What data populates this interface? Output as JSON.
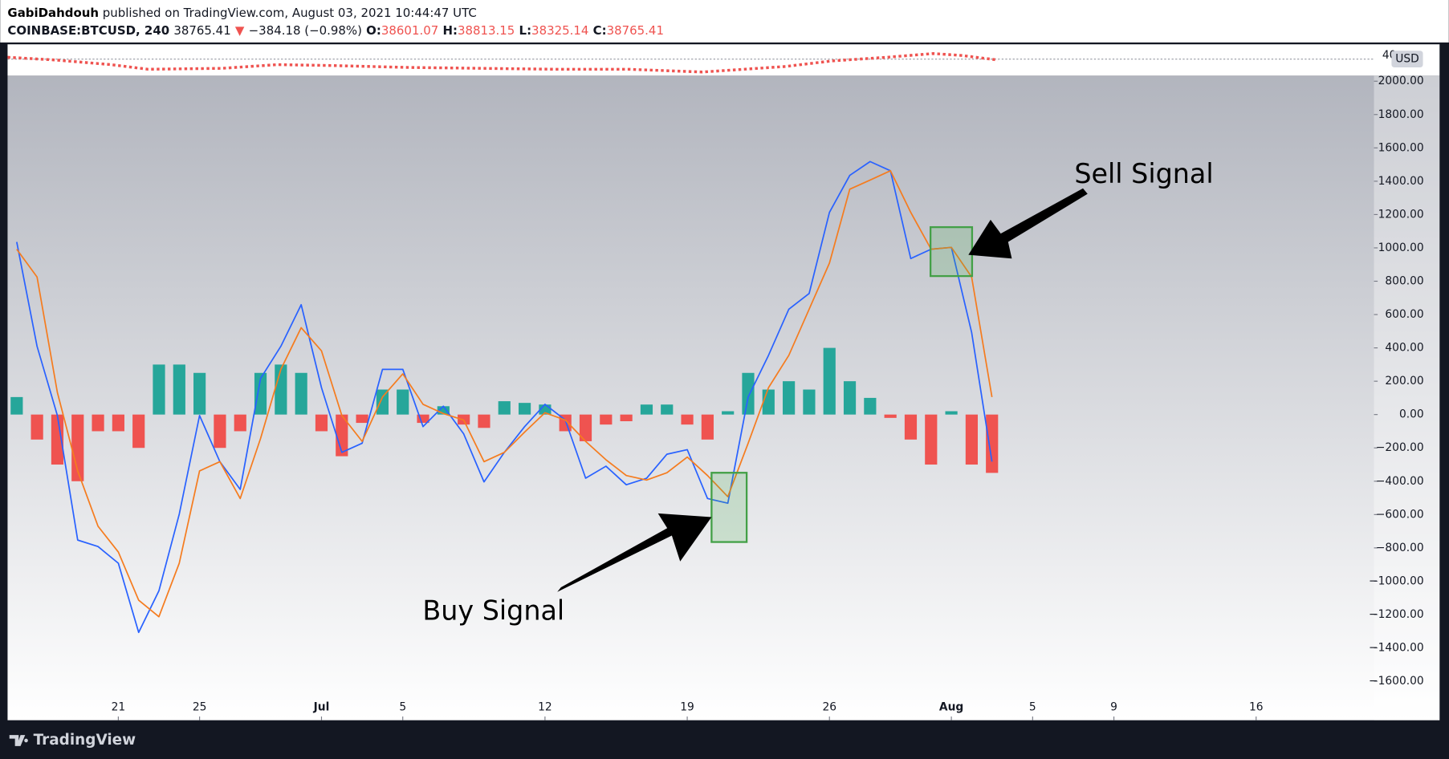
{
  "header": {
    "author": "GabiDahdouh",
    "published": "published on TradingView.com, August 03, 2021 10:44:47 UTC",
    "symbol": "COINBASE:BTCUSD, 240",
    "price": "38765.41",
    "direction": "▼",
    "change": "−384.18 (−0.98%)",
    "ohlc": [
      {
        "label": "O:",
        "value": "38601.07"
      },
      {
        "label": "H:",
        "value": "38813.15"
      },
      {
        "label": "L:",
        "value": "38325.14"
      },
      {
        "label": "C:",
        "value": "38765.41"
      }
    ]
  },
  "overview": {
    "axis_label": "40",
    "currency": "USD"
  },
  "chart_data": {
    "type": "line",
    "x": [
      16,
      17,
      18,
      19,
      20,
      21,
      22,
      23,
      24,
      25,
      26,
      27,
      28,
      29,
      30,
      31,
      32,
      33,
      34,
      35,
      36,
      37,
      38,
      39,
      40,
      41,
      42,
      43,
      44,
      45,
      46,
      47,
      48,
      49,
      50,
      51,
      52,
      53,
      54,
      55,
      56,
      57,
      58,
      59,
      60,
      61,
      62,
      63,
      64
    ],
    "series": [
      {
        "type": "bar",
        "color": "#26a69a",
        "negative_color": "#ef5350",
        "values": [
          105,
          -150,
          -300,
          -400,
          -100,
          -100,
          -200,
          300,
          300,
          250,
          -200,
          -100,
          250,
          300,
          250,
          -100,
          -250,
          -50,
          150,
          150,
          -50,
          50,
          -60,
          -80,
          80,
          70,
          60,
          -100,
          -160,
          -60,
          -40,
          60,
          60,
          -60,
          -150,
          20,
          250,
          150,
          200,
          150,
          400,
          200,
          100,
          -20,
          -150,
          -300,
          20,
          -300,
          -350
        ]
      },
      {
        "type": "line",
        "color": "#2962ff",
        "values": [
          1036,
          410,
          -6,
          -753,
          -792,
          -892,
          -1307,
          -1058,
          -598,
          -6,
          -283,
          -449,
          216,
          410,
          659,
          161,
          -227,
          -172,
          271,
          271,
          -72,
          50,
          -116,
          -404,
          -227,
          -72,
          61,
          -33,
          -382,
          -310,
          -421,
          -382,
          -238,
          -211,
          -504,
          -532,
          105,
          355,
          632,
          726,
          1213,
          1435,
          1518,
          1463,
          936,
          992,
          1003,
          493,
          -283
        ]
      },
      {
        "type": "line",
        "color": "#f57c1f",
        "values": [
          992,
          825,
          133,
          -338,
          -670,
          -825,
          -1114,
          -1213,
          -892,
          -338,
          -283,
          -504,
          -144,
          271,
          521,
          382,
          -6,
          -161,
          105,
          244,
          61,
          6,
          -33,
          -283,
          -227,
          -105,
          11,
          -33,
          -161,
          -271,
          -366,
          -393,
          -349,
          -255,
          -366,
          -493,
          -172,
          161,
          355,
          632,
          909,
          1352,
          1407,
          1463,
          1213,
          992,
          1003,
          825,
          105
        ]
      }
    ],
    "xlim": [
      15.55,
      82.8
    ],
    "xticks": [
      21,
      25,
      {
        "value": 31,
        "label": "Jul"
      },
      {
        "value": 35,
        "label": "5"
      },
      {
        "value": 42,
        "label": "12"
      },
      {
        "value": 49,
        "label": "19"
      },
      {
        "value": 56,
        "label": "26"
      },
      {
        "value": 62,
        "label": "Aug"
      },
      {
        "value": 66,
        "label": "5"
      },
      {
        "value": 70,
        "label": "9"
      },
      {
        "value": 77,
        "label": "16"
      }
    ],
    "ylim": [
      -1834,
      2033
    ],
    "yticks": [
      {
        "value": 2000,
        "label": "2000.00"
      },
      {
        "value": 1800,
        "label": "1800.00"
      },
      {
        "value": 1600,
        "label": "1600.00"
      },
      {
        "value": 1400,
        "label": "1400.00"
      },
      {
        "value": 1200,
        "label": "1200.00"
      },
      {
        "value": 1000,
        "label": "1000.00"
      },
      {
        "value": 800,
        "label": "800.00"
      },
      {
        "value": 600,
        "label": "600.00"
      },
      {
        "value": 400,
        "label": "400.00"
      },
      {
        "value": 200,
        "label": "200.00"
      },
      {
        "value": 0,
        "label": "0.00"
      },
      {
        "value": -200,
        "label": "−200.00"
      },
      {
        "value": -400,
        "label": "−400.00"
      },
      {
        "value": -600,
        "label": "−600.00"
      },
      {
        "value": -800,
        "label": "−800.00"
      },
      {
        "value": -1000,
        "label": "−1000.00"
      },
      {
        "value": -1200,
        "label": "−1200.00"
      },
      {
        "value": -1400,
        "label": "−1400.00"
      },
      {
        "value": -1600,
        "label": "−1600.00"
      }
    ],
    "annotations": [
      {
        "text": "Sell Signal"
      },
      {
        "text": "Buy Signal"
      }
    ]
  },
  "footer": {
    "brand": "TradingView"
  }
}
